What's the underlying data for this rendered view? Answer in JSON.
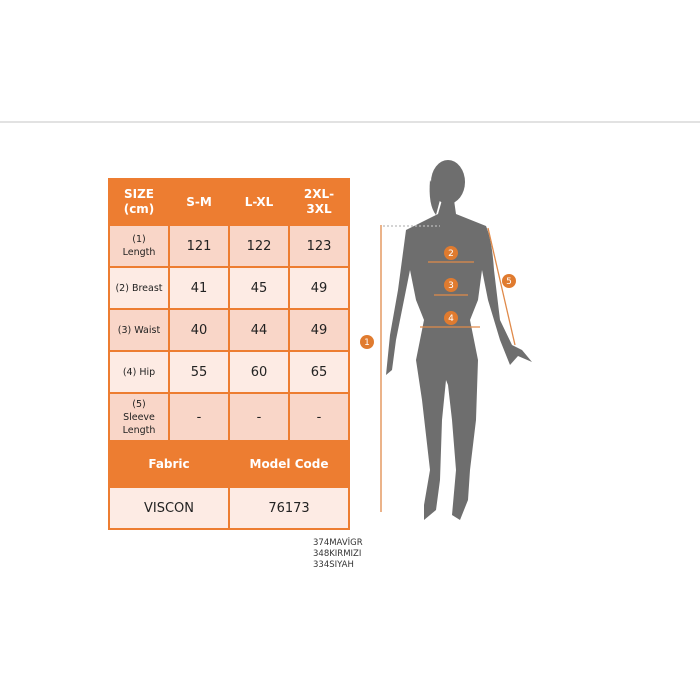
{
  "table": {
    "headers": [
      "SIZE\n(cm)",
      "S-M",
      "L-XL",
      "2XL-3XL"
    ],
    "rows": [
      {
        "label": "(1) Length",
        "values": [
          "121",
          "122",
          "123"
        ]
      },
      {
        "label": "(2) Breast",
        "values": [
          "41",
          "45",
          "49"
        ]
      },
      {
        "label": "(3) Waist",
        "values": [
          "40",
          "44",
          "49"
        ]
      },
      {
        "label": "(4) Hip",
        "values": [
          "55",
          "60",
          "65"
        ]
      },
      {
        "label": "(5) Sleeve Length",
        "values": [
          "-",
          "-",
          "-"
        ]
      }
    ],
    "footer_headers": [
      "Fabric",
      "Model Code"
    ],
    "footer_values": [
      "VISCON",
      "76173"
    ]
  },
  "codes": [
    "374MAVİGR",
    "348KIRMIZI",
    "334SIYAH"
  ],
  "figure": {
    "markers": [
      "1",
      "2",
      "3",
      "4",
      "5"
    ]
  },
  "colors": {
    "accent": "#ed7d31",
    "row_dark": "#f9d6c8",
    "row_light": "#fdebe4",
    "silhouette": "#6e6e6e"
  }
}
